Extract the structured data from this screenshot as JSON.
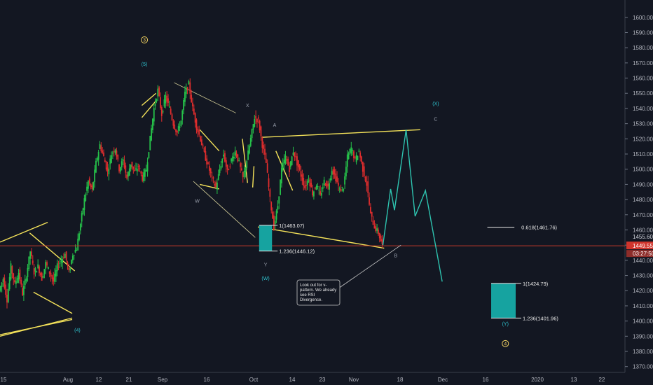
{
  "chart_data": {
    "type": "candlestick",
    "instrument_price_axis": {
      "ticks": [
        "1600.00",
        "1590.00",
        "1580.00",
        "1570.00",
        "1560.00",
        "1550.00",
        "1540.00",
        "1530.00",
        "1520.00",
        "1510.00",
        "1500.00",
        "1490.00",
        "1480.00",
        "1470.00",
        "1460.00",
        "1450.00",
        "1440.00",
        "1430.00",
        "1420.00",
        "1410.00",
        "1400.00",
        "1390.00",
        "1380.00",
        "1370.00"
      ],
      "tick_values": [
        1600,
        1590,
        1580,
        1570,
        1560,
        1550,
        1540,
        1530,
        1520,
        1510,
        1500,
        1490,
        1480,
        1470,
        1460,
        1450,
        1440,
        1430,
        1420,
        1410,
        1400,
        1390,
        1380,
        1370
      ],
      "range": [
        1367,
        1608
      ],
      "current_price_label": "1449.55",
      "countdown_label": "03:27:50",
      "level_label": "1455.60",
      "current_price": 1449.55,
      "level_price": 1455.6
    },
    "time_axis": {
      "labels": [
        "15",
        "Aug",
        "12",
        "21",
        "Sep",
        "16",
        "Oct",
        "14",
        "23",
        "Nov",
        "18",
        "Dec",
        "16",
        "2020",
        "13",
        "22"
      ]
    },
    "price_path": [
      [
        0,
        1420
      ],
      [
        3,
        1428
      ],
      [
        6,
        1414
      ],
      [
        9,
        1436
      ],
      [
        12,
        1424
      ],
      [
        15,
        1432
      ],
      [
        18,
        1418
      ],
      [
        21,
        1430
      ],
      [
        24,
        1446
      ],
      [
        27,
        1432
      ],
      [
        30,
        1436
      ],
      [
        33,
        1428
      ],
      [
        36,
        1438
      ],
      [
        39,
        1432
      ],
      [
        42,
        1426
      ],
      [
        45,
        1436
      ],
      [
        48,
        1440
      ],
      [
        51,
        1444
      ],
      [
        54,
        1432
      ],
      [
        57,
        1444
      ],
      [
        60,
        1448
      ],
      [
        63,
        1464
      ],
      [
        66,
        1480
      ],
      [
        69,
        1492
      ],
      [
        72,
        1486
      ],
      [
        75,
        1504
      ],
      [
        78,
        1516
      ],
      [
        81,
        1508
      ],
      [
        84,
        1498
      ],
      [
        87,
        1510
      ],
      [
        90,
        1514
      ],
      [
        93,
        1500
      ],
      [
        96,
        1506
      ],
      [
        99,
        1494
      ],
      [
        102,
        1504
      ],
      [
        105,
        1498
      ],
      [
        108,
        1502
      ],
      [
        111,
        1494
      ],
      [
        114,
        1500
      ],
      [
        117,
        1520
      ],
      [
        120,
        1540
      ],
      [
        123,
        1552
      ],
      [
        126,
        1536
      ],
      [
        129,
        1548
      ],
      [
        132,
        1540
      ],
      [
        135,
        1530
      ],
      [
        138,
        1524
      ],
      [
        141,
        1532
      ],
      [
        144,
        1550
      ],
      [
        147,
        1556
      ],
      [
        150,
        1540
      ],
      [
        153,
        1528
      ],
      [
        156,
        1520
      ],
      [
        159,
        1510
      ],
      [
        162,
        1502
      ],
      [
        165,
        1494
      ],
      [
        168,
        1488
      ],
      [
        171,
        1500
      ],
      [
        174,
        1510
      ],
      [
        177,
        1498
      ],
      [
        180,
        1506
      ],
      [
        183,
        1512
      ],
      [
        186,
        1504
      ],
      [
        189,
        1494
      ],
      [
        192,
        1506
      ],
      [
        195,
        1520
      ],
      [
        198,
        1534
      ],
      [
        201,
        1532
      ],
      [
        204,
        1516
      ],
      [
        207,
        1504
      ],
      [
        210,
        1480
      ],
      [
        213,
        1462
      ],
      [
        216,
        1476
      ],
      [
        219,
        1500
      ],
      [
        222,
        1508
      ],
      [
        225,
        1500
      ],
      [
        228,
        1512
      ],
      [
        231,
        1504
      ],
      [
        234,
        1496
      ],
      [
        237,
        1488
      ],
      [
        240,
        1494
      ],
      [
        243,
        1484
      ],
      [
        246,
        1490
      ],
      [
        249,
        1482
      ],
      [
        252,
        1492
      ],
      [
        255,
        1488
      ],
      [
        258,
        1500
      ],
      [
        261,
        1494
      ],
      [
        264,
        1486
      ],
      [
        267,
        1488
      ],
      [
        270,
        1508
      ],
      [
        273,
        1514
      ],
      [
        276,
        1506
      ],
      [
        279,
        1512
      ],
      [
        282,
        1500
      ],
      [
        285,
        1490
      ],
      [
        288,
        1470
      ],
      [
        291,
        1462
      ],
      [
        294,
        1458
      ],
      [
        297,
        1450
      ]
    ],
    "price_path_x_unit": "trading days from the start of the visible range",
    "projection_path": [
      [
        297,
        1450
      ],
      [
        303,
        1487
      ],
      [
        306,
        1473
      ],
      [
        315,
        1526
      ],
      [
        322,
        1469
      ],
      [
        330,
        1486
      ],
      [
        343,
        1426
      ]
    ],
    "wave_labels": [
      {
        "text": "3",
        "circled": true,
        "day": 112,
        "price": 1584,
        "color": "#f0d060"
      },
      {
        "text": "(5)",
        "day": 112,
        "price": 1568,
        "color": "#2ec4d0"
      },
      {
        "text": "X",
        "day": 192,
        "price": 1541,
        "color": "#9aa0ad"
      },
      {
        "text": "A",
        "day": 213,
        "price": 1528,
        "color": "#9aa0ad"
      },
      {
        "text": "W",
        "day": 153,
        "price": 1478,
        "color": "#9aa0ad"
      },
      {
        "text": "Y",
        "day": 206,
        "price": 1436,
        "color": "#9aa0ad"
      },
      {
        "text": "(W)",
        "day": 206,
        "price": 1427,
        "color": "#2ec4d0"
      },
      {
        "text": "(4)",
        "day": 60,
        "price": 1393,
        "color": "#2ec4d0"
      },
      {
        "text": "(X)",
        "day": 338,
        "price": 1542,
        "color": "#2ec4d0"
      },
      {
        "text": "C",
        "day": 338,
        "price": 1532,
        "color": "#9aa0ad"
      },
      {
        "text": "B",
        "day": 307,
        "price": 1442,
        "color": "#9aa0ad"
      },
      {
        "text": "(Y)",
        "day": 392,
        "price": 1397,
        "color": "#2ec4d0"
      },
      {
        "text": "4",
        "circled": true,
        "day": 392,
        "price": 1384,
        "color": "#f0d060"
      }
    ],
    "fib_boxes": [
      {
        "top": 1463.07,
        "bottom": 1446.12,
        "from": 201,
        "to": 211,
        "label_top": "1(1463.07)",
        "label_bottom": "1.236(1446.12)"
      },
      {
        "top": 1424.79,
        "bottom": 1401.96,
        "from": 381,
        "to": 400,
        "label_top": "1(1424.79)",
        "label_bottom": "1.236(1401.96)"
      }
    ],
    "fib_line": {
      "price": 1461.76,
      "from": 378,
      "to": 399,
      "label": "0.618(1461.76)"
    },
    "annotation": {
      "text_lines": [
        "Look out for v-",
        "pattern. We already",
        "see RSI",
        "Divergence."
      ],
      "anchor_day": 311,
      "anchor_price": 1450
    }
  }
}
